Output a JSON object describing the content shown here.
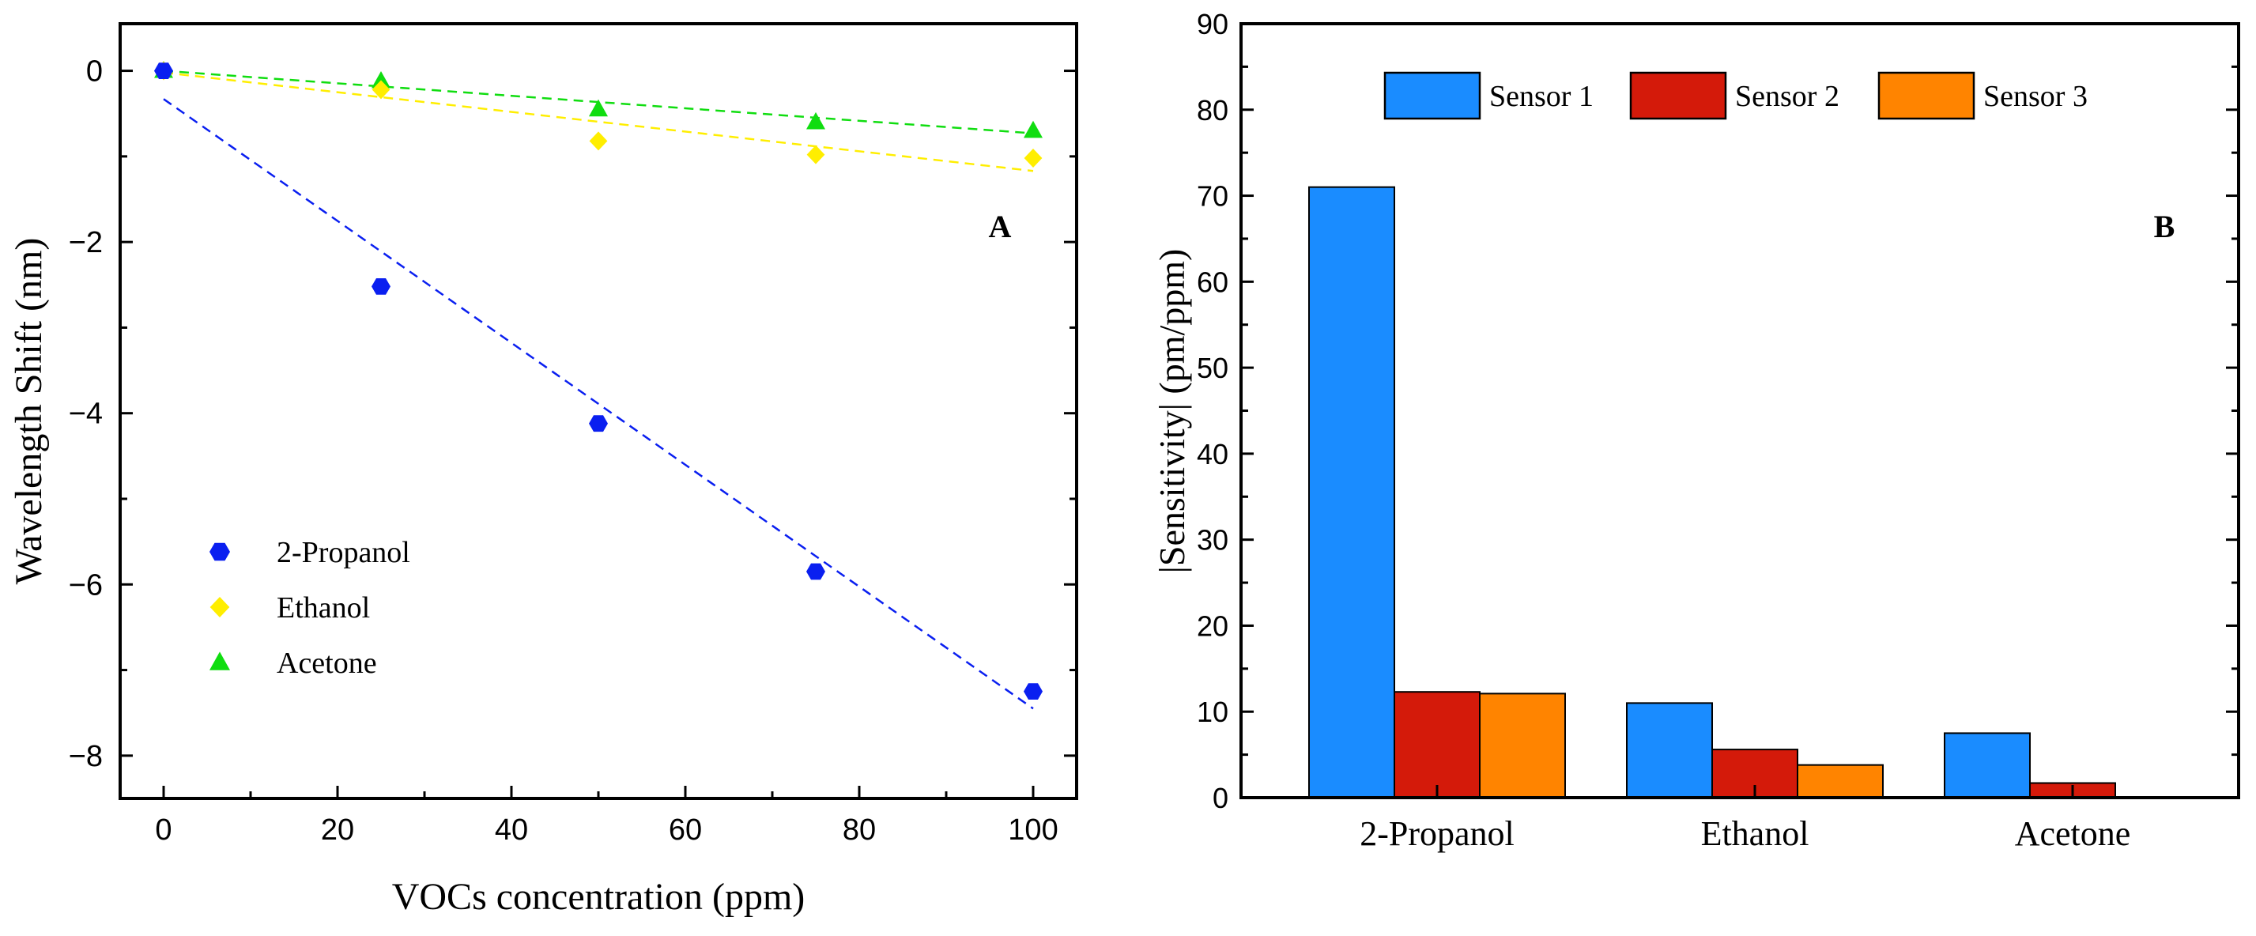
{
  "chart_data": [
    {
      "type": "scatter",
      "panel_label": "A",
      "xlabel": "VOCs concentration (ppm)",
      "ylabel": "Wavelength Shift (nm)",
      "xlim": [
        -5,
        105
      ],
      "ylim": [
        -8.5,
        0.55
      ],
      "xticks": [
        0,
        20,
        40,
        60,
        80,
        100
      ],
      "yticks": [
        0,
        -2,
        -4,
        -6,
        -8
      ],
      "xtick_labels": [
        "0",
        "20",
        "40",
        "60",
        "80",
        "100"
      ],
      "ytick_labels": [
        "0",
        "−2",
        "−4",
        "−6",
        "−8"
      ],
      "legend_position": "bottom-left",
      "series": [
        {
          "name": "2-Propanol",
          "marker": "hexagon",
          "color": "#0a1ff0",
          "x": [
            0,
            25,
            50,
            75,
            100
          ],
          "y": [
            0.0,
            -2.52,
            -4.12,
            -5.85,
            -7.25
          ],
          "fit": {
            "x": [
              0,
              100
            ],
            "y": [
              -0.33,
              -7.45
            ]
          }
        },
        {
          "name": "Ethanol",
          "marker": "diamond",
          "color": "#ffee00",
          "x": [
            0,
            25,
            50,
            75,
            100
          ],
          "y": [
            0.0,
            -0.22,
            -0.82,
            -0.98,
            -1.02
          ],
          "fit": {
            "x": [
              0,
              100
            ],
            "y": [
              -0.02,
              -1.17
            ]
          }
        },
        {
          "name": "Acetone",
          "marker": "triangle",
          "color": "#10dd10",
          "x": [
            0,
            25,
            50,
            75,
            100
          ],
          "y": [
            0.0,
            -0.12,
            -0.45,
            -0.6,
            -0.7
          ],
          "fit": {
            "x": [
              0,
              100
            ],
            "y": [
              0.0,
              -0.73
            ]
          }
        }
      ]
    },
    {
      "type": "bar",
      "panel_label": "B",
      "xlabel": "",
      "ylabel": "|Sensitivity| (pm/ppm)",
      "ylim": [
        0,
        90
      ],
      "yticks": [
        0,
        10,
        20,
        30,
        40,
        50,
        60,
        70,
        80,
        90
      ],
      "ytick_labels": [
        "0",
        "10",
        "20",
        "30",
        "40",
        "50",
        "60",
        "70",
        "80",
        "90"
      ],
      "categories": [
        "2-Propanol",
        "Ethanol",
        "Acetone"
      ],
      "legend_position": "top",
      "series": [
        {
          "name": "Sensor 1",
          "color": "#1a8cff",
          "values": [
            71,
            11,
            7.5
          ]
        },
        {
          "name": "Sensor 2",
          "color": "#d41a0a",
          "values": [
            12.3,
            5.6,
            1.7
          ]
        },
        {
          "name": "Sensor 3",
          "color": "#ff8400",
          "values": [
            12.1,
            3.8,
            0
          ]
        }
      ]
    }
  ]
}
